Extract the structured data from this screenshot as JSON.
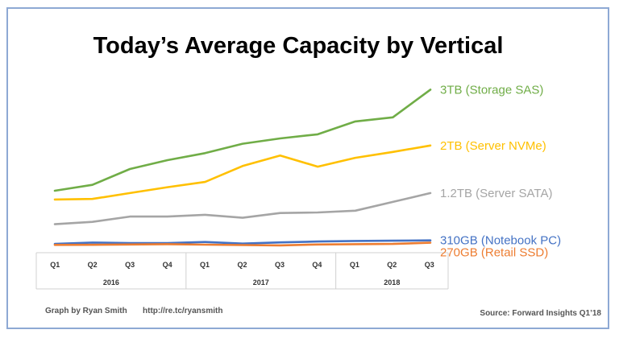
{
  "chart_data": {
    "type": "line",
    "title": "Today’s Average Capacity by Vertical",
    "xlabel": "",
    "ylabel": "",
    "categories": [
      "Q1",
      "Q2",
      "Q3",
      "Q4",
      "Q1",
      "Q2",
      "Q3",
      "Q4",
      "Q1",
      "Q2",
      "Q3"
    ],
    "groups": [
      {
        "label": "2016",
        "count": 4
      },
      {
        "label": "2017",
        "count": 4
      },
      {
        "label": "2018",
        "count": 3
      }
    ],
    "ylim": [
      0,
      3000
    ],
    "grid": false,
    "legend": "inline-right",
    "series": [
      {
        "name": "3TB (Storage SAS)",
        "color": "#70ad47",
        "values": [
          1000,
          1100,
          1370,
          1520,
          1640,
          1800,
          1890,
          1960,
          2180,
          2250,
          2720
        ]
      },
      {
        "name": "2TB (Server NVMe)",
        "color": "#ffc000",
        "values": [
          850,
          860,
          960,
          1060,
          1150,
          1420,
          1600,
          1410,
          1560,
          1660,
          1770
        ]
      },
      {
        "name": "1.2TB (Server SATA)",
        "color": "#a5a5a5",
        "values": [
          430,
          470,
          560,
          560,
          590,
          540,
          620,
          630,
          660,
          810,
          960
        ]
      },
      {
        "name": "310GB (Notebook PC)",
        "color": "#4472c4",
        "values": [
          95,
          118,
          108,
          110,
          128,
          100,
          120,
          135,
          145,
          150,
          155
        ]
      },
      {
        "name": "270GB (Retail SSD)",
        "color": "#ed7d31",
        "values": [
          78,
          80,
          85,
          90,
          82,
          75,
          70,
          85,
          90,
          95,
          115
        ]
      }
    ]
  },
  "footer": {
    "credit": "Graph by Ryan Smith",
    "url": "http://re.tc/ryansmith",
    "source": "Source: Forward Insights Q1’18"
  }
}
